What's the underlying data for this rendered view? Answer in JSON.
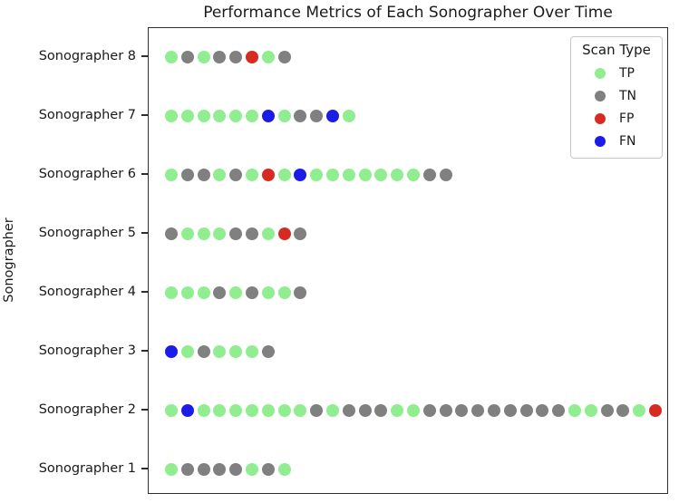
{
  "title": "Performance Metrics of Each Sonographer Over Time",
  "chart_data": {
    "type": "scatter",
    "title": "Performance Metrics of Each Sonographer Over Time",
    "xlabel": "",
    "ylabel": "Sonographer",
    "x_tick_labels": [],
    "grid": false,
    "legend": {
      "title": "Scan Type",
      "position": "upper right",
      "entries": [
        {
          "label": "TP",
          "color": "#90ee90"
        },
        {
          "label": "TN",
          "color": "#808080"
        },
        {
          "label": "FP",
          "color": "#d62b22"
        },
        {
          "label": "FN",
          "color": "#1c1ce8"
        }
      ]
    },
    "colors": {
      "TP": "#90ee90",
      "TN": "#808080",
      "FP": "#d62b22",
      "FN": "#1c1ce8"
    },
    "rows": [
      {
        "category": "Sonographer 8",
        "scans": [
          "TP",
          "TN",
          "TP",
          "TN",
          "TN",
          "FP",
          "TP",
          "TN"
        ]
      },
      {
        "category": "Sonographer 7",
        "scans": [
          "TP",
          "TP",
          "TP",
          "TP",
          "TP",
          "TP",
          "FN",
          "TP",
          "TN",
          "TN",
          "FN",
          "TP"
        ]
      },
      {
        "category": "Sonographer 6",
        "scans": [
          "TP",
          "TN",
          "TN",
          "TP",
          "TN",
          "TP",
          "FP",
          "TP",
          "FN",
          "TP",
          "TP",
          "TP",
          "TP",
          "TP",
          "TP",
          "TP",
          "TN",
          "TN"
        ]
      },
      {
        "category": "Sonographer 5",
        "scans": [
          "TN",
          "TP",
          "TP",
          "TP",
          "TN",
          "TN",
          "TP",
          "FP",
          "TN"
        ]
      },
      {
        "category": "Sonographer 4",
        "scans": [
          "TP",
          "TP",
          "TP",
          "TN",
          "TP",
          "TN",
          "TP",
          "TP",
          "TN"
        ]
      },
      {
        "category": "Sonographer 3",
        "scans": [
          "FN",
          "TP",
          "TN",
          "TP",
          "TP",
          "TP",
          "TN"
        ]
      },
      {
        "category": "Sonographer 2",
        "scans": [
          "TP",
          "FN",
          "TP",
          "TP",
          "TP",
          "TP",
          "TP",
          "TP",
          "TP",
          "TN",
          "TP",
          "TN",
          "TN",
          "TN",
          "TP",
          "TP",
          "TN",
          "TN",
          "TN",
          "TN",
          "TN",
          "TN",
          "TN",
          "TN",
          "TN",
          "TP",
          "TP",
          "TN",
          "TN",
          "TP",
          "FP"
        ]
      },
      {
        "category": "Sonographer 1",
        "scans": [
          "TP",
          "TN",
          "TN",
          "TN",
          "TN",
          "TP",
          "TN",
          "TP"
        ]
      }
    ],
    "layout": {
      "row_y_start": 32,
      "row_y_step": 65,
      "dot_x_start": 25,
      "dot_x_step": 17.8,
      "dot_size": 14
    }
  }
}
